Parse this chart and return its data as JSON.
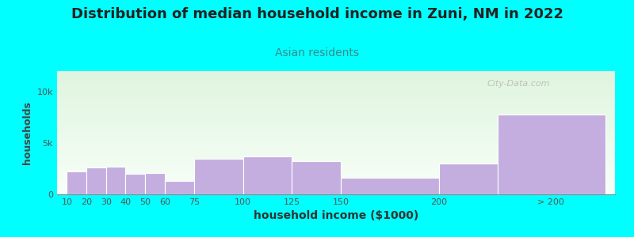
{
  "title": "Distribution of median household income in Zuni, NM in 2022",
  "subtitle": "Asian residents",
  "xlabel": "household income ($1000)",
  "ylabel": "households",
  "background_color": "#00ffff",
  "plot_bg_top": "#dff5df",
  "plot_bg_bottom": "#f8fff8",
  "bar_color": "#c4aee0",
  "bar_edge_color": "#ffffff",
  "categories": [
    "10",
    "20",
    "30",
    "40",
    "50",
    "60",
    "75",
    "100",
    "125",
    "150",
    "200",
    "> 200"
  ],
  "values": [
    2200,
    2600,
    2700,
    2000,
    2050,
    1300,
    3500,
    3700,
    3200,
    1600,
    3000,
    7800
  ],
  "positions": [
    10,
    20,
    30,
    40,
    50,
    60,
    75,
    100,
    125,
    150,
    200,
    230
  ],
  "widths": [
    10,
    10,
    10,
    10,
    10,
    15,
    25,
    25,
    25,
    50,
    30,
    55
  ],
  "xtick_positions": [
    10,
    20,
    30,
    40,
    50,
    60,
    75,
    100,
    125,
    150,
    200,
    257
  ],
  "xlim": [
    5,
    290
  ],
  "ylim": [
    0,
    12000
  ],
  "yticks": [
    0,
    5000,
    10000
  ],
  "yticklabels": [
    "0",
    "5k",
    "10k"
  ],
  "watermark": "City-Data.com",
  "title_color": "#222222",
  "subtitle_color": "#3a8a8a",
  "title_fontsize": 13,
  "subtitle_fontsize": 10,
  "xlabel_fontsize": 10,
  "ylabel_fontsize": 9,
  "tick_fontsize": 8
}
